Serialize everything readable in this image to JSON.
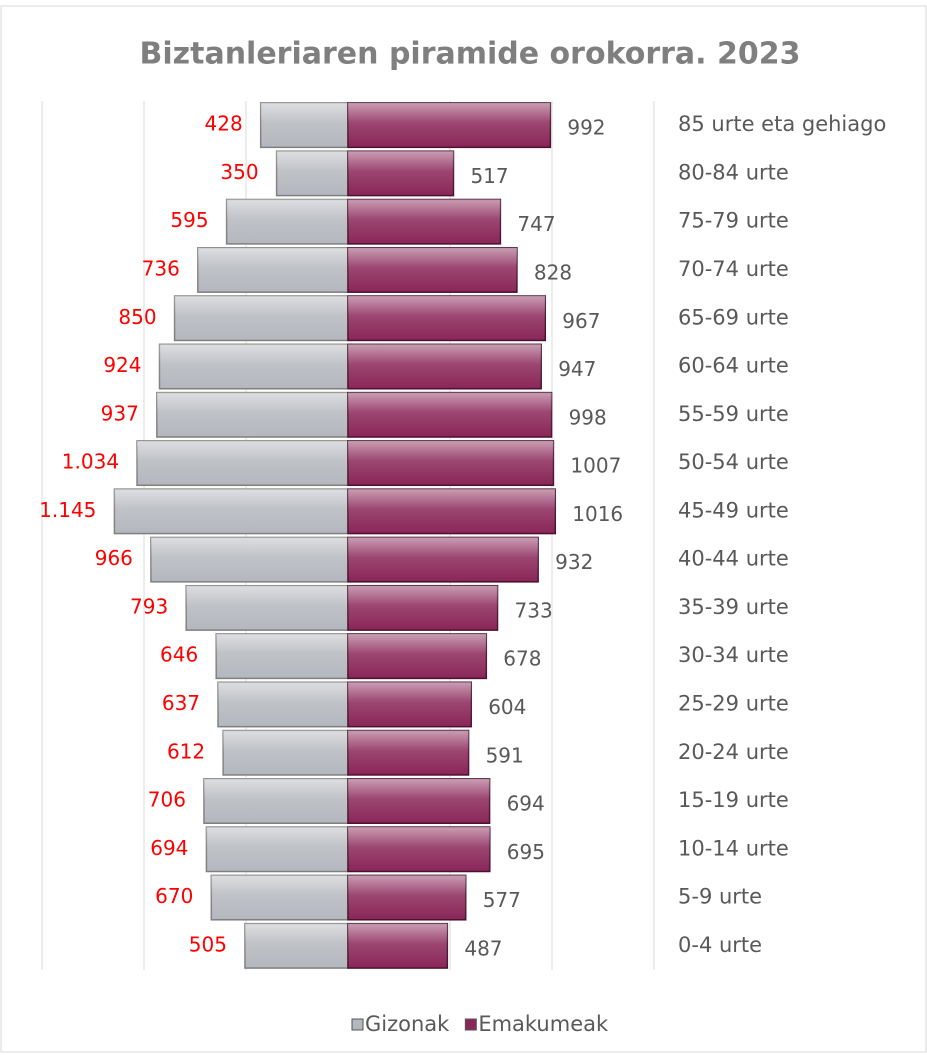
{
  "chart_data": {
    "type": "pyramid",
    "title": "Biztanleriaren piramide orokorra. 2023",
    "categories": [
      "85 urte eta gehiago",
      "80-84 urte",
      "75-79 urte",
      "70-74 urte",
      "65-69 urte",
      "60-64 urte",
      "55-59 urte",
      "50-54 urte",
      "45-49 urte",
      "40-44 urte",
      "35-39 urte",
      "30-34 urte",
      "25-29 urte",
      "20-24 urte",
      "15-19 urte",
      "10-14 urte",
      "5-9 urte",
      "0-4 urte"
    ],
    "series": [
      {
        "name": "Gizonak",
        "color": "#b4b7bd",
        "label_color": "#ff0000",
        "values": [
          428,
          350,
          595,
          736,
          850,
          924,
          937,
          1034,
          1145,
          966,
          793,
          646,
          637,
          612,
          706,
          694,
          670,
          505
        ],
        "value_labels": [
          "428",
          "350",
          "595",
          "736",
          "850",
          "924",
          "937",
          "1.034",
          "1.145",
          "966",
          "793",
          "646",
          "637",
          "612",
          "706",
          "694",
          "670",
          "505"
        ]
      },
      {
        "name": "Emakumeak",
        "color": "#8a2658",
        "label_color": "#595959",
        "values": [
          992,
          517,
          747,
          828,
          967,
          947,
          998,
          1007,
          1016,
          932,
          733,
          678,
          604,
          591,
          694,
          695,
          577,
          487
        ]
      }
    ],
    "xlim": [
      0,
      1500
    ],
    "xticks": [
      0,
      500,
      1000,
      1500
    ],
    "grid": true
  }
}
